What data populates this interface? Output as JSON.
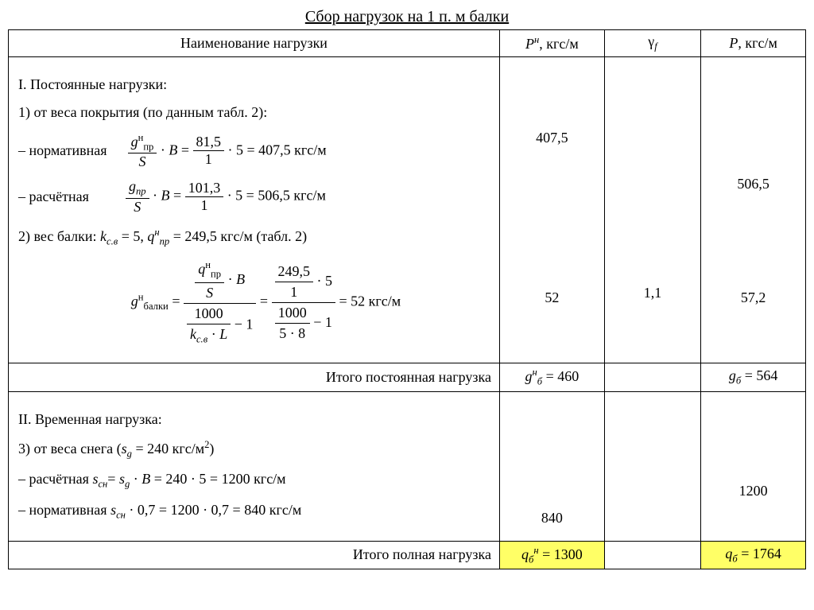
{
  "title": "Сбор нагрузок на 1 п. м балки",
  "headers": {
    "name": "Наименование нагрузки",
    "pn_html": "<span class='italic'>P<sup>н</sup></span>, кгс/м",
    "gf_html": "γ<sub><span class='italic'>f</span></sub>",
    "p_html": "<span class='italic'>P</span>, кгс/м"
  },
  "sectionI": {
    "heading": "I. Постоянные нагрузки:",
    "item1_intro": "1) от веса покрытия (по данным табл. 2):",
    "norm_label": "– нормативная",
    "norm_formula_html": "<span class='frac'><span class='num'><span class='italic'>g</span><sup>н</sup><sub>пр</sub></span><span class='den'><span class='italic'>S</span></span></span> · <span class='italic'>B</span> = <span class='frac'><span class='num'>81,5</span><span class='den'>1</span></span> · 5 = 407,5 кгс/м",
    "calc_label": "– расчётная",
    "calc_formula_html": "<span class='frac'><span class='num'><span class='italic'>g<sub>пр</sub></span></span><span class='den'><span class='italic'>S</span></span></span> · <span class='italic'>B</span> = <span class='frac'><span class='num'>101,3</span><span class='den'>1</span></span> · 5 = 506,5 кгс/м",
    "item2_intro_html": "2) вес балки: <span class='italic'>k<sub>с.в</sub></span> = 5, <span class='italic'>q<sup>н</sup><sub>пр</sub></span> = 249,5 кгс/м (табл. 2)",
    "beam_formula_html": "<span class='italic'>g</span><sup>н</sup><sub>балки</sub> = <span class='frac bigfrac'><span class='num'><span class='frac'><span class='num'><span class='italic'>q</span><sup>н</sup><sub>пр</sub></span><span class='den'><span class='italic'>S</span></span></span> · <span class='italic'>B</span></span><span class='den'><span class='frac'><span class='num'>1000</span><span class='den'><span class='italic'>k<sub>с.в</sub></span> · <span class='italic'>L</span></span></span> − 1</span></span> = <span class='frac bigfrac'><span class='num'><span class='frac'><span class='num'>249,5</span><span class='den'>1</span></span> · 5</span><span class='den'><span class='frac'><span class='num'>1000</span><span class='den'>5 · 8</span></span> − 1</span></span> = 52 кгс/м",
    "pn_vals": {
      "v1": "407,5",
      "v2": "52"
    },
    "gf_vals": {
      "v1": "1,1"
    },
    "p_vals": {
      "v1": "506,5",
      "v2": "57,2"
    }
  },
  "subtotalI": {
    "label": "Итого постоянная нагрузка",
    "pn_html": "<span class='italic'>g<sup>н</sup><sub>б</sub></span> = 460",
    "p_html": "<span class='italic'>g<sub>б</sub></span> = 564"
  },
  "sectionII": {
    "heading": "II. Временная нагрузка:",
    "item3_intro_html": "3) от веса снега (<span class='italic'>s<sub>g</sub></span> = 240 кгс/м<sup>2</sup>)",
    "calc_line_html": "– расчётная <span class='italic'>s<sub>сн</sub></span>= <span class='italic'>s<sub>g</sub></span> · <span class='italic'>B</span> = 240 · 5 = 1200 кгс/м",
    "norm_line_html": "– нормативная <span class='italic'>s<sub>сн</sub></span> · 0,7 = 1200 · 0,7 = 840 кгс/м",
    "pn_vals": {
      "v1": "840"
    },
    "p_vals": {
      "v1": "1200"
    }
  },
  "total": {
    "label": "Итого полная нагрузка",
    "pn_html": "<span class='italic'>q<sub>б</sub><sup>н</sup></span> = 1300",
    "p_html": "<span class='italic'>q<sub>б</sub></span> = 1764"
  },
  "colors": {
    "highlight": "#ffff66",
    "border": "#000000",
    "background": "#ffffff",
    "text": "#000000"
  }
}
